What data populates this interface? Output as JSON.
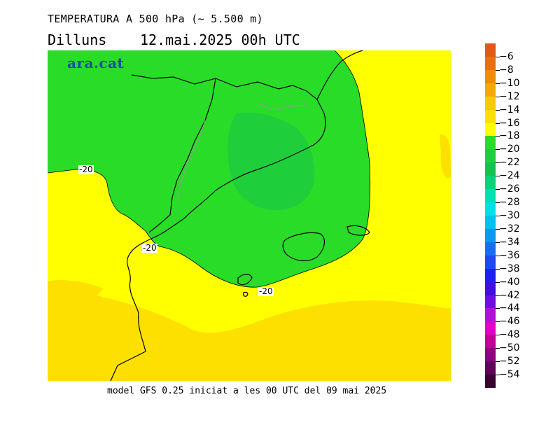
{
  "header": {
    "title": "TEMPERATURA A 500 hPa (~ 5.500 m)",
    "day": "Dilluns",
    "datetime": "12.mai.2025 00h UTC"
  },
  "footer": "model GFS 0.25 iniciat a les 00 UTC del 09 mai 2025",
  "logo": "ara.cat",
  "contour_labels": [
    "-20",
    "-20",
    "-20"
  ],
  "legend": {
    "ticks": [
      "-6",
      "-8",
      "-10",
      "-12",
      "-14",
      "-16",
      "-18",
      "-20",
      "-22",
      "-24",
      "-26",
      "-28",
      "-30",
      "-32",
      "-34",
      "-36",
      "-38",
      "-40",
      "-42",
      "-44",
      "-46",
      "-48",
      "-50",
      "-52",
      "-54"
    ],
    "colors": [
      "#e05a14",
      "#e8700e",
      "#f08c0a",
      "#f6a808",
      "#fac806",
      "#fde000",
      "#ffff00",
      "#28dc28",
      "#1ece3a",
      "#14c250",
      "#0ad276",
      "#00e0b0",
      "#00e0e8",
      "#00c0f0",
      "#0a98f0",
      "#1470f0",
      "#1e48f0",
      "#1e20f0",
      "#4010e0",
      "#7010e0",
      "#b010d8",
      "#e000c8",
      "#c00098",
      "#900080",
      "#600058",
      "#3a0030"
    ]
  }
}
